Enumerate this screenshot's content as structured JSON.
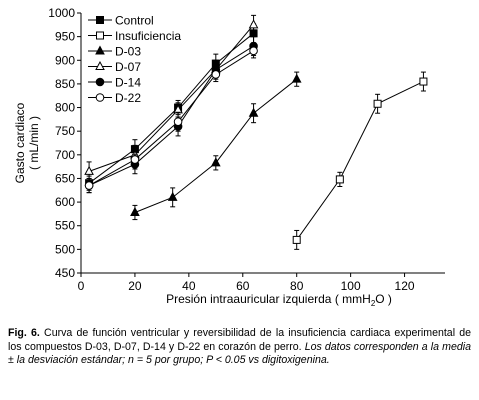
{
  "chart_data": {
    "type": "line",
    "title": "",
    "xlabel_main": "Presión intraauricular izquierda ( mmH",
    "xlabel_sub": "2",
    "xlabel_end": "O )",
    "ylabel_line1": "Gasto cardiaco",
    "ylabel_line2": "( mL/min )",
    "xlim": [
      0,
      135
    ],
    "ylim": [
      450,
      1000
    ],
    "xticks": [
      0,
      20,
      40,
      60,
      80,
      100,
      120
    ],
    "yticks": [
      450,
      500,
      550,
      600,
      650,
      700,
      750,
      800,
      850,
      900,
      950,
      1000
    ],
    "legend_position": "top-left",
    "series": [
      {
        "name": "Control",
        "marker": "square-filled",
        "color": "#000000",
        "x": [
          3,
          20,
          36,
          50,
          64
        ],
        "y": [
          640,
          712,
          800,
          893,
          957
        ],
        "err": [
          15,
          20,
          15,
          20,
          20
        ]
      },
      {
        "name": "Insuficiencia",
        "marker": "square-open",
        "color": "#000000",
        "x": [
          80,
          96,
          110,
          127
        ],
        "y": [
          520,
          648,
          808,
          855
        ],
        "err": [
          20,
          15,
          20,
          20
        ]
      },
      {
        "name": "D-03",
        "marker": "triangle-filled",
        "color": "#000000",
        "x": [
          20,
          34,
          50,
          64,
          80
        ],
        "y": [
          578,
          610,
          683,
          788,
          860
        ],
        "err": [
          15,
          20,
          15,
          20,
          15
        ]
      },
      {
        "name": "D-07",
        "marker": "triangle-open",
        "color": "#000000",
        "x": [
          3,
          20,
          36,
          50,
          64
        ],
        "y": [
          665,
          700,
          795,
          880,
          975
        ],
        "err": [
          20,
          20,
          15,
          20,
          20
        ]
      },
      {
        "name": "D-14",
        "marker": "circle-filled",
        "color": "#000000",
        "x": [
          3,
          20,
          36,
          50,
          64
        ],
        "y": [
          635,
          680,
          760,
          880,
          930
        ],
        "err": [
          15,
          20,
          20,
          15,
          20
        ]
      },
      {
        "name": "D-22",
        "marker": "circle-open",
        "color": "#000000",
        "x": [
          3,
          20,
          36,
          50,
          64
        ],
        "y": [
          635,
          690,
          770,
          870,
          920
        ],
        "err": [
          15,
          20,
          20,
          15,
          15
        ]
      }
    ]
  },
  "caption": {
    "label": "Fig. 6.",
    "text": " Curva de función ventricular y reversibilidad de la insuficiencia cardiaca experimental de los compuestos D-03, D-07, D-14 y D-22 en corazón de perro. ",
    "italic": "Los datos corresponden a la media ± la desviación estándar; n = 5 por grupo; P < 0.05 vs digitoxigenina."
  }
}
